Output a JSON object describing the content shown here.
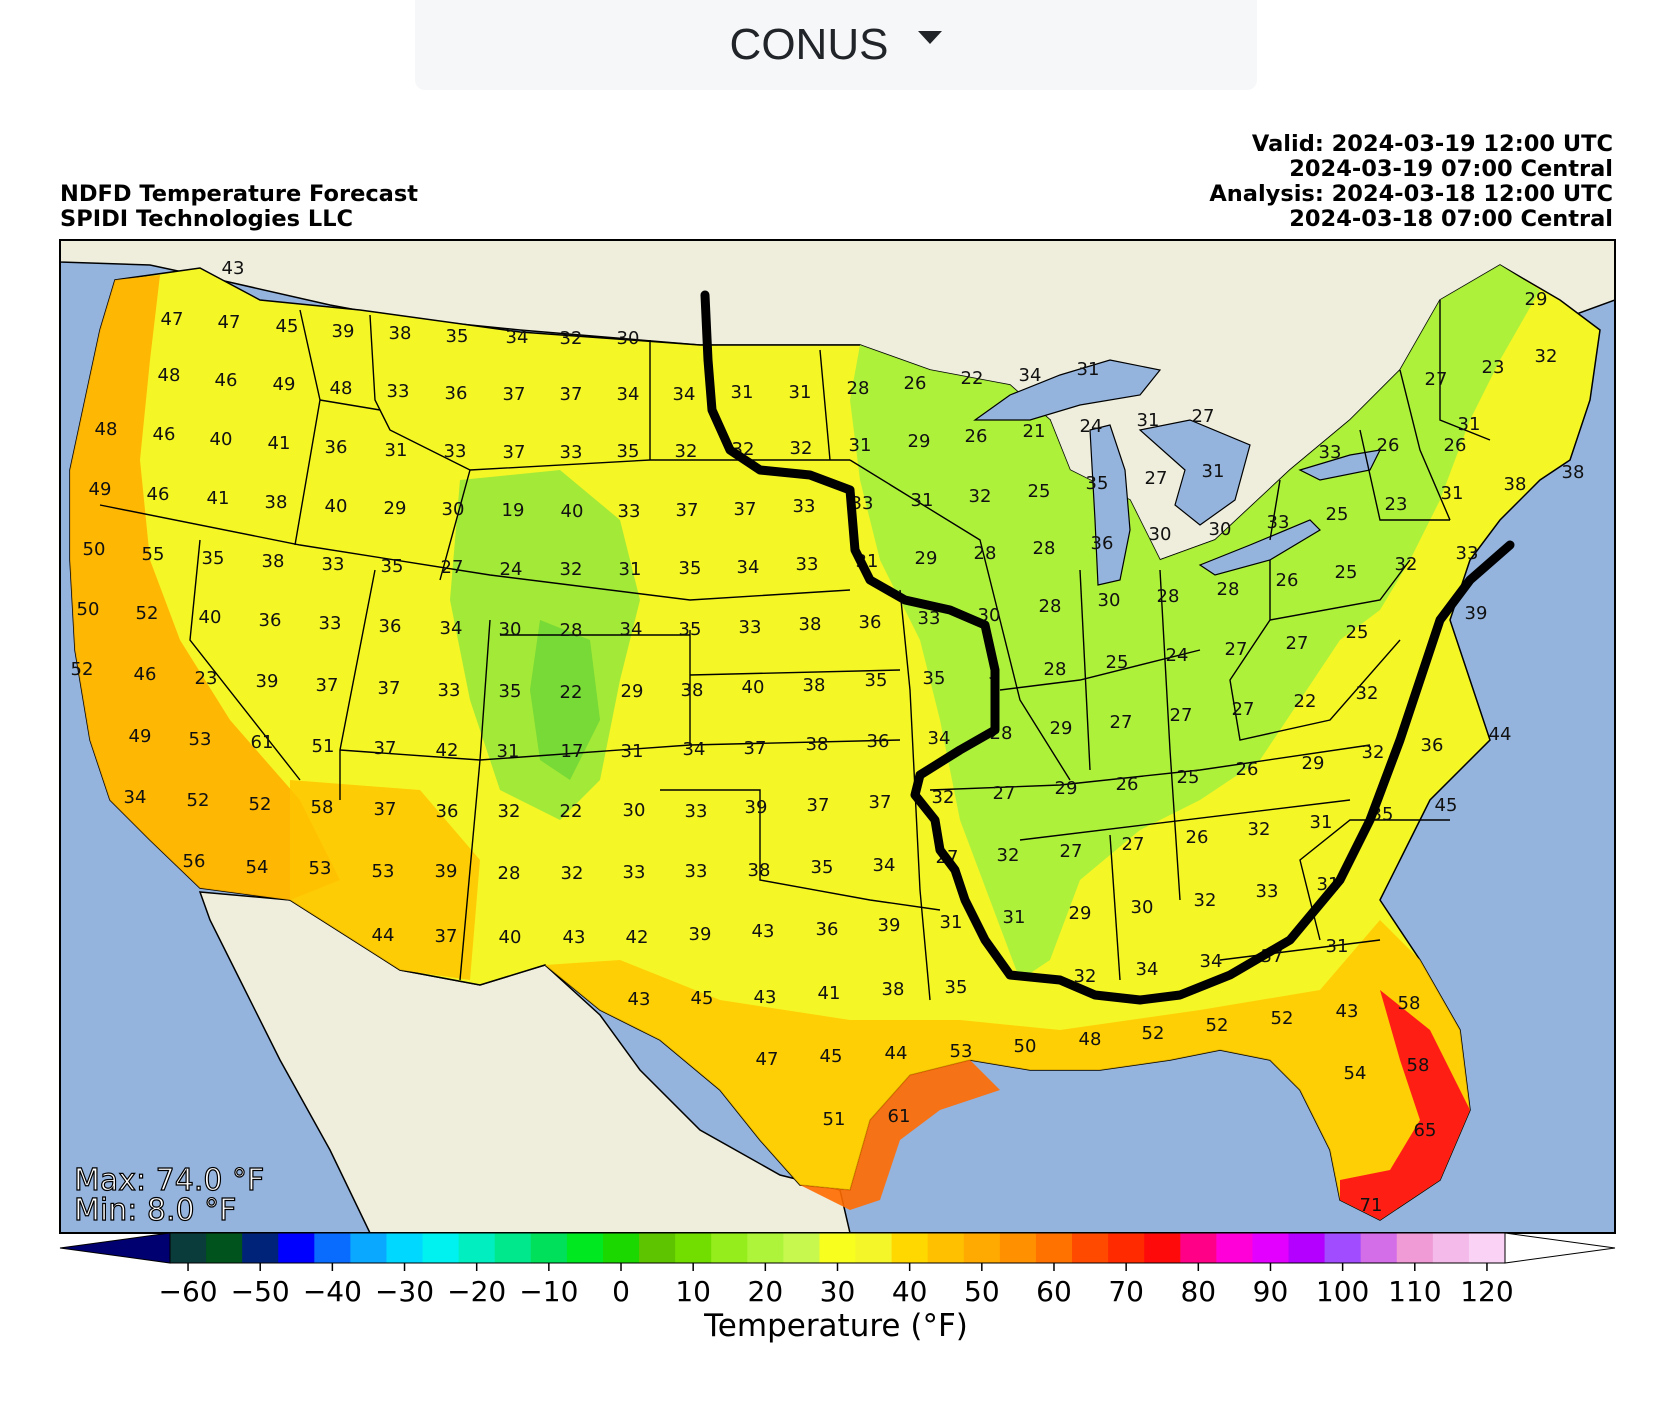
{
  "selector": {
    "label": "CONUS",
    "icon": "caret-down-icon"
  },
  "header": {
    "left": [
      "NDFD Temperature Forecast",
      "SPIDI Technologies LLC"
    ],
    "right": [
      "Valid: 2024-03-19 12:00 UTC",
      "2024-03-19 07:00 Central",
      "Analysis: 2024-03-18 12:00 UTC",
      "2024-03-18 07:00 Central"
    ]
  },
  "stats": {
    "max": "Max: 74.0 °F",
    "min": "Min: 8.0 °F"
  },
  "colorbar": {
    "label": "Temperature (°F)",
    "ticks": [
      "−60",
      "−50",
      "−40",
      "−30",
      "−20",
      "−10",
      "0",
      "10",
      "20",
      "30",
      "40",
      "50",
      "60",
      "70",
      "80",
      "90",
      "100",
      "110",
      "120"
    ],
    "colors": [
      "#000070",
      "#0b3c3c",
      "#00531c",
      "#00237a",
      "#0000ff",
      "#0a6cff",
      "#0aa9ff",
      "#00d8ff",
      "#00f2f0",
      "#00eec0",
      "#00e88c",
      "#00e05a",
      "#00e820",
      "#1bd800",
      "#5fc400",
      "#72de00",
      "#96ed1c",
      "#aef43a",
      "#c6f84e",
      "#f8ff1e",
      "#f4f62a",
      "#ffd800",
      "#ffc000",
      "#ffaa00",
      "#ff9000",
      "#ff7200",
      "#ff4a00",
      "#ff2a00",
      "#ff0a0a",
      "#ff0086",
      "#ff00d8",
      "#e400ff",
      "#b400ff",
      "#a24cff",
      "#d46ee8",
      "#f09ad6",
      "#f3baea",
      "#fad2f6",
      "#ffffff"
    ],
    "colors_note": ""
  },
  "map_labels": [
    [
      "43",
      233,
      269
    ],
    [
      "47",
      172,
      320
    ],
    [
      "47",
      229,
      323
    ],
    [
      "45",
      287,
      327
    ],
    [
      "39",
      343,
      332
    ],
    [
      "38",
      400,
      334
    ],
    [
      "35",
      457,
      337
    ],
    [
      "34",
      517,
      338
    ],
    [
      "32",
      571,
      339
    ],
    [
      "30",
      628,
      339
    ],
    [
      "48",
      169,
      376
    ],
    [
      "46",
      226,
      381
    ],
    [
      "49",
      284,
      385
    ],
    [
      "48",
      341,
      389
    ],
    [
      "33",
      398,
      392
    ],
    [
      "36",
      456,
      394
    ],
    [
      "37",
      514,
      395
    ],
    [
      "37",
      571,
      395
    ],
    [
      "34",
      628,
      395
    ],
    [
      "34",
      684,
      395
    ],
    [
      "31",
      742,
      393
    ],
    [
      "31",
      800,
      393
    ],
    [
      "28",
      858,
      389
    ],
    [
      "26",
      915,
      384
    ],
    [
      "22",
      972,
      379
    ],
    [
      "34",
      1030,
      376
    ],
    [
      "31",
      1088,
      370
    ],
    [
      "48",
      106,
      430
    ],
    [
      "46",
      164,
      435
    ],
    [
      "40",
      221,
      440
    ],
    [
      "41",
      279,
      444
    ],
    [
      "36",
      336,
      448
    ],
    [
      "31",
      396,
      451
    ],
    [
      "33",
      455,
      452
    ],
    [
      "37",
      514,
      453
    ],
    [
      "33",
      571,
      453
    ],
    [
      "35",
      628,
      452
    ],
    [
      "32",
      686,
      452
    ],
    [
      "32",
      743,
      450
    ],
    [
      "32",
      801,
      449
    ],
    [
      "31",
      860,
      446
    ],
    [
      "29",
      919,
      442
    ],
    [
      "26",
      976,
      437
    ],
    [
      "21",
      1034,
      432
    ],
    [
      "24",
      1091,
      427
    ],
    [
      "31",
      1148,
      421
    ],
    [
      "27",
      1203,
      417
    ],
    [
      "49",
      100,
      490
    ],
    [
      "46",
      158,
      495
    ],
    [
      "41",
      218,
      499
    ],
    [
      "38",
      276,
      503
    ],
    [
      "40",
      336,
      507
    ],
    [
      "29",
      395,
      509
    ],
    [
      "30",
      453,
      510
    ],
    [
      "19",
      513,
      511
    ],
    [
      "40",
      572,
      512
    ],
    [
      "33",
      629,
      512
    ],
    [
      "37",
      687,
      511
    ],
    [
      "37",
      745,
      510
    ],
    [
      "33",
      804,
      507
    ],
    [
      "33",
      862,
      504
    ],
    [
      "31",
      922,
      501
    ],
    [
      "32",
      980,
      497
    ],
    [
      "25",
      1039,
      492
    ],
    [
      "35",
      1097,
      484
    ],
    [
      "27",
      1156,
      479
    ],
    [
      "31",
      1213,
      472
    ],
    [
      "50",
      94,
      550
    ],
    [
      "55",
      153,
      555
    ],
    [
      "35",
      213,
      559
    ],
    [
      "38",
      273,
      562
    ],
    [
      "33",
      333,
      565
    ],
    [
      "35",
      392,
      567
    ],
    [
      "27",
      452,
      568
    ],
    [
      "24",
      511,
      570
    ],
    [
      "32",
      571,
      570
    ],
    [
      "31",
      630,
      570
    ],
    [
      "35",
      690,
      569
    ],
    [
      "34",
      748,
      568
    ],
    [
      "33",
      807,
      565
    ],
    [
      "31",
      867,
      562
    ],
    [
      "29",
      926,
      559
    ],
    [
      "28",
      985,
      554
    ],
    [
      "28",
      1044,
      549
    ],
    [
      "36",
      1102,
      544
    ],
    [
      "30",
      1160,
      535
    ],
    [
      "30",
      1220,
      530
    ],
    [
      "33",
      1278,
      523
    ],
    [
      "25",
      1337,
      515
    ],
    [
      "23",
      1396,
      505
    ],
    [
      "26",
      1455,
      446
    ],
    [
      "29",
      1536,
      300
    ],
    [
      "23",
      1493,
      368
    ],
    [
      "32",
      1546,
      357
    ],
    [
      "27",
      1436,
      380
    ],
    [
      "33",
      1330,
      453
    ],
    [
      "26",
      1388,
      446
    ],
    [
      "31",
      1469,
      425
    ],
    [
      "31",
      1452,
      494
    ],
    [
      "38",
      1515,
      485
    ],
    [
      "38",
      1573,
      473
    ],
    [
      "50",
      88,
      610
    ],
    [
      "52",
      147,
      614
    ],
    [
      "40",
      210,
      618
    ],
    [
      "36",
      270,
      621
    ],
    [
      "33",
      330,
      624
    ],
    [
      "36",
      390,
      627
    ],
    [
      "34",
      451,
      629
    ],
    [
      "30",
      510,
      630
    ],
    [
      "28",
      571,
      631
    ],
    [
      "34",
      631,
      630
    ],
    [
      "35",
      690,
      630
    ],
    [
      "33",
      750,
      628
    ],
    [
      "38",
      810,
      625
    ],
    [
      "36",
      870,
      623
    ],
    [
      "33",
      929,
      619
    ],
    [
      "30",
      989,
      616
    ],
    [
      "28",
      1050,
      607
    ],
    [
      "30",
      1109,
      601
    ],
    [
      "28",
      1168,
      597
    ],
    [
      "28",
      1228,
      590
    ],
    [
      "26",
      1287,
      581
    ],
    [
      "25",
      1346,
      573
    ],
    [
      "32",
      1406,
      565
    ],
    [
      "33",
      1467,
      554
    ],
    [
      "39",
      1476,
      614
    ],
    [
      "52",
      82,
      670
    ],
    [
      "46",
      145,
      675
    ],
    [
      "23",
      206,
      679
    ],
    [
      "39",
      267,
      682
    ],
    [
      "37",
      327,
      686
    ],
    [
      "37",
      389,
      689
    ],
    [
      "33",
      449,
      691
    ],
    [
      "35",
      510,
      692
    ],
    [
      "22",
      571,
      693
    ],
    [
      "29",
      632,
      692
    ],
    [
      "38",
      692,
      691
    ],
    [
      "40",
      753,
      688
    ],
    [
      "38",
      814,
      686
    ],
    [
      "35",
      876,
      681
    ],
    [
      "35",
      934,
      679
    ],
    [
      "3",
      994,
      674
    ],
    [
      "28",
      1055,
      670
    ],
    [
      "25",
      1117,
      663
    ],
    [
      "24",
      1177,
      656
    ],
    [
      "27",
      1236,
      650
    ],
    [
      "27",
      1297,
      644
    ],
    [
      "25",
      1357,
      633
    ],
    [
      "22",
      1305,
      702
    ],
    [
      "32",
      1367,
      694
    ],
    [
      "49",
      140,
      737
    ],
    [
      "53",
      200,
      740
    ],
    [
      "61",
      262,
      743
    ],
    [
      "51",
      323,
      747
    ],
    [
      "37",
      385,
      749
    ],
    [
      "42",
      447,
      751
    ],
    [
      "31",
      508,
      752
    ],
    [
      "17",
      572,
      752
    ],
    [
      "31",
      632,
      752
    ],
    [
      "34",
      694,
      750
    ],
    [
      "37",
      755,
      749
    ],
    [
      "38",
      817,
      745
    ],
    [
      "36",
      878,
      742
    ],
    [
      "34",
      939,
      739
    ],
    [
      "28",
      1001,
      734
    ],
    [
      "29",
      1061,
      729
    ],
    [
      "27",
      1121,
      723
    ],
    [
      "27",
      1181,
      716
    ],
    [
      "27",
      1243,
      710
    ],
    [
      "29",
      1313,
      764
    ],
    [
      "32",
      1373,
      753
    ],
    [
      "36",
      1432,
      746
    ],
    [
      "44",
      1500,
      735
    ],
    [
      "34",
      135,
      798
    ],
    [
      "52",
      198,
      801
    ],
    [
      "52",
      260,
      805
    ],
    [
      "58",
      322,
      808
    ],
    [
      "37",
      385,
      810
    ],
    [
      "36",
      447,
      812
    ],
    [
      "32",
      509,
      812
    ],
    [
      "22",
      571,
      812
    ],
    [
      "30",
      634,
      811
    ],
    [
      "33",
      696,
      812
    ],
    [
      "39",
      756,
      808
    ],
    [
      "37",
      818,
      806
    ],
    [
      "37",
      880,
      803
    ],
    [
      "32",
      943,
      798
    ],
    [
      "27",
      1004,
      794
    ],
    [
      "29",
      1066,
      789
    ],
    [
      "26",
      1127,
      785
    ],
    [
      "25",
      1188,
      778
    ],
    [
      "26",
      1247,
      770
    ],
    [
      "35",
      1382,
      815
    ],
    [
      "45",
      1446,
      806
    ],
    [
      "56",
      194,
      862
    ],
    [
      "54",
      257,
      868
    ],
    [
      "53",
      320,
      869
    ],
    [
      "53",
      383,
      872
    ],
    [
      "39",
      446,
      872
    ],
    [
      "28",
      509,
      874
    ],
    [
      "32",
      572,
      874
    ],
    [
      "33",
      634,
      873
    ],
    [
      "33",
      696,
      872
    ],
    [
      "38",
      759,
      871
    ],
    [
      "35",
      822,
      868
    ],
    [
      "34",
      884,
      866
    ],
    [
      "27",
      947,
      858
    ],
    [
      "32",
      1008,
      856
    ],
    [
      "27",
      1071,
      852
    ],
    [
      "27",
      1133,
      845
    ],
    [
      "26",
      1197,
      838
    ],
    [
      "32",
      1259,
      830
    ],
    [
      "31",
      1321,
      823
    ],
    [
      "31",
      1328,
      885
    ],
    [
      "33",
      1267,
      892
    ],
    [
      "32",
      1205,
      901
    ],
    [
      "30",
      1142,
      908
    ],
    [
      "29",
      1080,
      914
    ],
    [
      "44",
      383,
      936
    ],
    [
      "37",
      446,
      937
    ],
    [
      "40",
      510,
      938
    ],
    [
      "43",
      574,
      938
    ],
    [
      "42",
      637,
      938
    ],
    [
      "39",
      700,
      935
    ],
    [
      "43",
      763,
      932
    ],
    [
      "36",
      827,
      930
    ],
    [
      "39",
      889,
      926
    ],
    [
      "31",
      951,
      923
    ],
    [
      "31",
      1014,
      918
    ],
    [
      "32",
      1085,
      977
    ],
    [
      "34",
      1147,
      970
    ],
    [
      "34",
      1211,
      962
    ],
    [
      "37",
      1272,
      957
    ],
    [
      "31",
      1337,
      947
    ],
    [
      "43",
      639,
      1000
    ],
    [
      "45",
      702,
      999
    ],
    [
      "43",
      765,
      998
    ],
    [
      "41",
      829,
      994
    ],
    [
      "38",
      893,
      990
    ],
    [
      "35",
      956,
      988
    ],
    [
      "52",
      1153,
      1034
    ],
    [
      "52",
      1217,
      1026
    ],
    [
      "52",
      1282,
      1019
    ],
    [
      "43",
      1347,
      1012
    ],
    [
      "58",
      1409,
      1004
    ],
    [
      "47",
      767,
      1060
    ],
    [
      "45",
      831,
      1057
    ],
    [
      "44",
      896,
      1054
    ],
    [
      "53",
      961,
      1052
    ],
    [
      "50",
      1025,
      1047
    ],
    [
      "48",
      1090,
      1040
    ],
    [
      "54",
      1355,
      1074
    ],
    [
      "58",
      1418,
      1066
    ],
    [
      "51",
      834,
      1120
    ],
    [
      "61",
      899,
      1117
    ],
    [
      "65",
      1425,
      1131
    ],
    [
      "71",
      1371,
      1206
    ]
  ]
}
